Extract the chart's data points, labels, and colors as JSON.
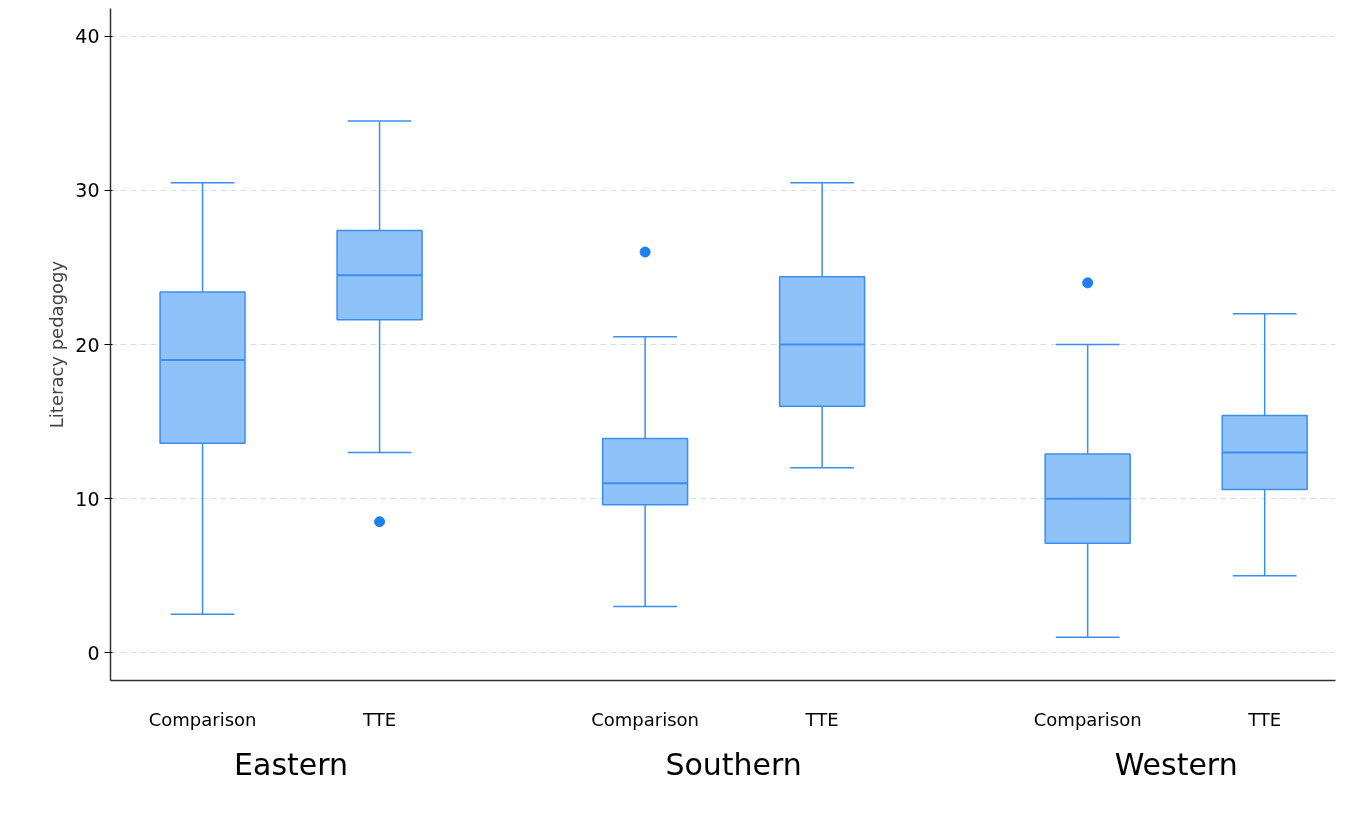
{
  "chart_data": {
    "type": "box",
    "ylabel": "Literacy pedagogy",
    "categories": [
      "Comparison",
      "TTE",
      "Comparison",
      "TTE",
      "Comparison",
      "TTE"
    ],
    "boxes": [
      {
        "low": 2.5,
        "q1": 13.6,
        "median": 19.0,
        "q3": 23.4,
        "high": 30.5
      },
      {
        "low": 13.0,
        "q1": 21.6,
        "median": 24.5,
        "q3": 27.4,
        "high": 34.5,
        "outliers": [
          8.5
        ]
      },
      {
        "low": 3.0,
        "q1": 9.6,
        "median": 11.0,
        "q3": 13.9,
        "high": 20.5,
        "outliers": [
          26.0
        ]
      },
      {
        "low": 12.0,
        "q1": 16.0,
        "median": 20.0,
        "q3": 24.4,
        "high": 30.5
      },
      {
        "low": 1.0,
        "q1": 7.1,
        "median": 10.0,
        "q3": 12.9,
        "high": 20.0,
        "outliers": [
          24.0
        ]
      },
      {
        "low": 5.0,
        "q1": 10.6,
        "median": 13.0,
        "q3": 15.4,
        "high": 22.0
      }
    ],
    "color": "#90c2fa",
    "annotations": [
      "Eastern",
      "Southern",
      "Western"
    ],
    "ylim": [
      -1.8,
      41.8
    ],
    "yticks": [
      0,
      10,
      20,
      30,
      40
    ],
    "grid": "y"
  }
}
